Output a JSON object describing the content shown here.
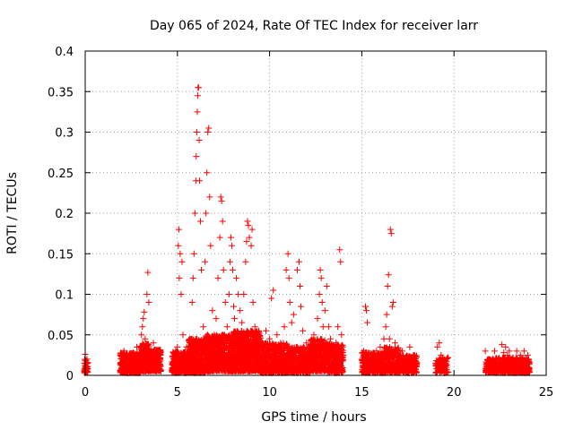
{
  "chart_data": {
    "type": "scatter",
    "title": "Day 065 of 2024, Rate Of TEC Index for receiver larr",
    "xlabel": "GPS time / hours",
    "ylabel": "ROTI / TECUs",
    "xlim": [
      0,
      25
    ],
    "ylim": [
      0,
      0.4
    ],
    "xticks": [
      0,
      5,
      10,
      15,
      20,
      25
    ],
    "xtick_labels": [
      "0",
      "5",
      "10",
      "15",
      "20",
      "25"
    ],
    "yticks": [
      0,
      0.05,
      0.1,
      0.15,
      0.2,
      0.25,
      0.3,
      0.35,
      0.4
    ],
    "ytick_labels": [
      "0",
      "0.05",
      "0.1",
      "0.15",
      "0.2",
      "0.25",
      "0.3",
      "0.35",
      "0.4"
    ],
    "grid": true,
    "marker": "+",
    "color": "#ff0000",
    "series": [
      {
        "name": "ROTI",
        "points": [
          [
            0.0,
            0.026
          ],
          [
            0.02,
            0.012
          ],
          [
            0.05,
            0.018
          ],
          [
            0.08,
            0.008
          ],
          [
            0.1,
            0.02
          ],
          [
            0.12,
            0.015
          ],
          [
            1.9,
            0.025
          ],
          [
            2.0,
            0.012
          ],
          [
            2.1,
            0.03
          ],
          [
            2.2,
            0.018
          ],
          [
            2.3,
            0.015
          ],
          [
            2.4,
            0.022
          ],
          [
            2.5,
            0.01
          ],
          [
            2.6,
            0.028
          ],
          [
            2.7,
            0.02
          ],
          [
            2.8,
            0.035
          ],
          [
            2.9,
            0.015
          ],
          [
            3.0,
            0.025
          ],
          [
            3.05,
            0.05
          ],
          [
            3.1,
            0.06
          ],
          [
            3.15,
            0.07
          ],
          [
            3.2,
            0.078
          ],
          [
            3.25,
            0.045
          ],
          [
            3.3,
            0.035
          ],
          [
            3.35,
            0.1
          ],
          [
            3.4,
            0.127
          ],
          [
            3.45,
            0.09
          ],
          [
            3.5,
            0.03
          ],
          [
            3.6,
            0.02
          ],
          [
            3.7,
            0.04
          ],
          [
            3.8,
            0.025
          ],
          [
            3.9,
            0.015
          ],
          [
            4.8,
            0.02
          ],
          [
            4.9,
            0.03
          ],
          [
            5.0,
            0.035
          ],
          [
            5.05,
            0.16
          ],
          [
            5.08,
            0.18
          ],
          [
            5.1,
            0.12
          ],
          [
            5.15,
            0.15
          ],
          [
            5.2,
            0.1
          ],
          [
            5.25,
            0.14
          ],
          [
            5.3,
            0.05
          ],
          [
            5.4,
            0.025
          ],
          [
            5.5,
            0.035
          ],
          [
            5.6,
            0.02
          ],
          [
            5.75,
            0.045
          ],
          [
            5.8,
            0.09
          ],
          [
            5.85,
            0.12
          ],
          [
            5.9,
            0.15
          ],
          [
            5.95,
            0.2
          ],
          [
            6.0,
            0.24
          ],
          [
            6.02,
            0.27
          ],
          [
            6.05,
            0.3
          ],
          [
            6.08,
            0.325
          ],
          [
            6.1,
            0.345
          ],
          [
            6.12,
            0.355
          ],
          [
            6.15,
            0.355
          ],
          [
            6.18,
            0.29
          ],
          [
            6.2,
            0.24
          ],
          [
            6.25,
            0.19
          ],
          [
            6.3,
            0.13
          ],
          [
            6.4,
            0.06
          ],
          [
            6.5,
            0.14
          ],
          [
            6.55,
            0.2
          ],
          [
            6.6,
            0.25
          ],
          [
            6.65,
            0.3
          ],
          [
            6.7,
            0.305
          ],
          [
            6.75,
            0.22
          ],
          [
            6.8,
            0.16
          ],
          [
            6.9,
            0.08
          ],
          [
            7.0,
            0.05
          ],
          [
            7.1,
            0.07
          ],
          [
            7.2,
            0.12
          ],
          [
            7.3,
            0.17
          ],
          [
            7.35,
            0.22
          ],
          [
            7.4,
            0.215
          ],
          [
            7.45,
            0.19
          ],
          [
            7.5,
            0.13
          ],
          [
            7.6,
            0.09
          ],
          [
            7.7,
            0.06
          ],
          [
            7.8,
            0.1
          ],
          [
            7.85,
            0.14
          ],
          [
            7.9,
            0.17
          ],
          [
            7.95,
            0.16
          ],
          [
            8.0,
            0.13
          ],
          [
            8.05,
            0.085
          ],
          [
            8.1,
            0.07
          ],
          [
            8.2,
            0.12
          ],
          [
            8.3,
            0.1
          ],
          [
            8.4,
            0.08
          ],
          [
            8.5,
            0.065
          ],
          [
            8.6,
            0.1
          ],
          [
            8.7,
            0.14
          ],
          [
            8.75,
            0.165
          ],
          [
            8.8,
            0.19
          ],
          [
            8.85,
            0.185
          ],
          [
            8.9,
            0.17
          ],
          [
            9.0,
            0.16
          ],
          [
            9.05,
            0.18
          ],
          [
            9.1,
            0.09
          ],
          [
            9.2,
            0.06
          ],
          [
            9.4,
            0.05
          ],
          [
            9.6,
            0.04
          ],
          [
            9.8,
            0.055
          ],
          [
            10.0,
            0.045
          ],
          [
            10.1,
            0.095
          ],
          [
            10.2,
            0.105
          ],
          [
            10.4,
            0.05
          ],
          [
            10.6,
            0.04
          ],
          [
            10.8,
            0.06
          ],
          [
            10.9,
            0.13
          ],
          [
            11.0,
            0.15
          ],
          [
            11.05,
            0.12
          ],
          [
            11.1,
            0.09
          ],
          [
            11.2,
            0.065
          ],
          [
            11.3,
            0.075
          ],
          [
            11.5,
            0.13
          ],
          [
            11.6,
            0.14
          ],
          [
            11.65,
            0.11
          ],
          [
            11.7,
            0.085
          ],
          [
            11.8,
            0.055
          ],
          [
            12.0,
            0.04
          ],
          [
            12.2,
            0.03
          ],
          [
            12.4,
            0.05
          ],
          [
            12.6,
            0.07
          ],
          [
            12.7,
            0.1
          ],
          [
            12.75,
            0.13
          ],
          [
            12.8,
            0.12
          ],
          [
            12.85,
            0.09
          ],
          [
            12.9,
            0.06
          ],
          [
            13.0,
            0.08
          ],
          [
            13.1,
            0.11
          ],
          [
            13.2,
            0.06
          ],
          [
            13.3,
            0.045
          ],
          [
            13.4,
            0.035
          ],
          [
            13.6,
            0.04
          ],
          [
            13.7,
            0.06
          ],
          [
            13.8,
            0.155
          ],
          [
            13.85,
            0.14
          ],
          [
            13.9,
            0.05
          ],
          [
            14.0,
            0.025
          ],
          [
            15.1,
            0.03
          ],
          [
            15.2,
            0.085
          ],
          [
            15.25,
            0.08
          ],
          [
            15.3,
            0.065
          ],
          [
            15.4,
            0.02
          ],
          [
            15.6,
            0.025
          ],
          [
            15.8,
            0.03
          ],
          [
            16.0,
            0.035
          ],
          [
            16.2,
            0.045
          ],
          [
            16.3,
            0.06
          ],
          [
            16.35,
            0.075
          ],
          [
            16.4,
            0.11
          ],
          [
            16.45,
            0.124
          ],
          [
            16.5,
            0.045
          ],
          [
            16.55,
            0.18
          ],
          [
            16.6,
            0.175
          ],
          [
            16.65,
            0.085
          ],
          [
            16.7,
            0.09
          ],
          [
            16.8,
            0.04
          ],
          [
            17.0,
            0.025
          ],
          [
            17.2,
            0.03
          ],
          [
            17.4,
            0.02
          ],
          [
            17.6,
            0.035
          ],
          [
            17.8,
            0.025
          ],
          [
            17.9,
            0.015
          ],
          [
            19.1,
            0.035
          ],
          [
            19.2,
            0.04
          ],
          [
            19.3,
            0.025
          ],
          [
            19.4,
            0.02
          ],
          [
            19.5,
            0.012
          ],
          [
            19.6,
            0.01
          ],
          [
            21.7,
            0.03
          ],
          [
            21.8,
            0.015
          ],
          [
            21.9,
            0.02
          ],
          [
            22.0,
            0.012
          ],
          [
            22.2,
            0.03
          ],
          [
            22.4,
            0.02
          ],
          [
            22.6,
            0.038
          ],
          [
            22.7,
            0.028
          ],
          [
            22.8,
            0.035
          ],
          [
            22.9,
            0.025
          ],
          [
            23.0,
            0.03
          ],
          [
            23.2,
            0.022
          ],
          [
            23.4,
            0.03
          ],
          [
            23.6,
            0.025
          ],
          [
            23.8,
            0.03
          ],
          [
            23.9,
            0.018
          ],
          [
            24.0,
            0.025
          ]
        ],
        "dense_clusters": [
          {
            "x_range": [
              -0.05,
              0.15
            ],
            "y_range": [
              0.003,
              0.02
            ],
            "count": 40
          },
          {
            "x_range": [
              1.9,
              3.0
            ],
            "y_range": [
              0.003,
              0.028
            ],
            "count": 360
          },
          {
            "x_range": [
              3.0,
              3.5
            ],
            "y_range": [
              0.005,
              0.04
            ],
            "count": 180
          },
          {
            "x_range": [
              3.5,
              4.1
            ],
            "y_range": [
              0.005,
              0.032
            ],
            "count": 200
          },
          {
            "x_range": [
              4.7,
              5.6
            ],
            "y_range": [
              0.003,
              0.03
            ],
            "count": 240
          },
          {
            "x_range": [
              5.6,
              6.5
            ],
            "y_range": [
              0.003,
              0.045
            ],
            "count": 380
          },
          {
            "x_range": [
              6.5,
              8.0
            ],
            "y_range": [
              0.005,
              0.05
            ],
            "count": 650
          },
          {
            "x_range": [
              8.0,
              9.5
            ],
            "y_range": [
              0.005,
              0.055
            ],
            "count": 700
          },
          {
            "x_range": [
              9.5,
              11.0
            ],
            "y_range": [
              0.003,
              0.04
            ],
            "count": 500
          },
          {
            "x_range": [
              11.0,
              12.2
            ],
            "y_range": [
              0.003,
              0.035
            ],
            "count": 360
          },
          {
            "x_range": [
              12.2,
              13.0
            ],
            "y_range": [
              0.005,
              0.045
            ],
            "count": 280
          },
          {
            "x_range": [
              13.0,
              14.0
            ],
            "y_range": [
              0.003,
              0.04
            ],
            "count": 260
          },
          {
            "x_range": [
              15.0,
              16.2
            ],
            "y_range": [
              0.003,
              0.028
            ],
            "count": 320
          },
          {
            "x_range": [
              16.2,
              17.0
            ],
            "y_range": [
              0.003,
              0.035
            ],
            "count": 220
          },
          {
            "x_range": [
              17.0,
              18.0
            ],
            "y_range": [
              0.003,
              0.025
            ],
            "count": 230
          },
          {
            "x_range": [
              19.0,
              19.7
            ],
            "y_range": [
              0.003,
              0.022
            ],
            "count": 100
          },
          {
            "x_range": [
              21.7,
              22.1
            ],
            "y_range": [
              0.003,
              0.02
            ],
            "count": 80
          },
          {
            "x_range": [
              22.1,
              24.1
            ],
            "y_range": [
              0.003,
              0.022
            ],
            "count": 420
          }
        ]
      }
    ]
  }
}
